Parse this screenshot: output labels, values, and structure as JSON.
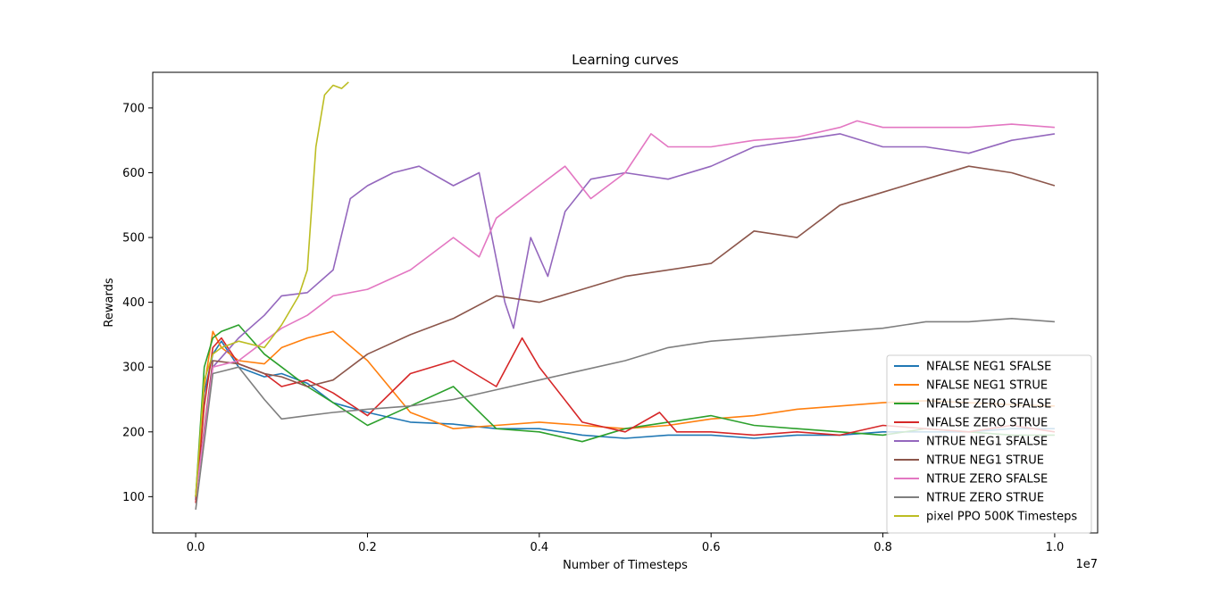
{
  "chart_data": {
    "type": "line",
    "title": "Learning curves",
    "xlabel": "Number of Timesteps",
    "ylabel": "Rewards",
    "x_scale_label": "1e7",
    "xlim": [
      -500000,
      10500000
    ],
    "ylim": [
      44,
      755
    ],
    "xticks": [
      0,
      2000000,
      4000000,
      6000000,
      8000000,
      10000000
    ],
    "xtick_labels": [
      "0.0",
      "0.2",
      "0.4",
      "0.6",
      "0.8",
      "1.0"
    ],
    "yticks": [
      100,
      200,
      300,
      400,
      500,
      600,
      700
    ],
    "ytick_labels": [
      "100",
      "200",
      "300",
      "400",
      "500",
      "600",
      "700"
    ],
    "grid": false,
    "legend_position": "lower-right",
    "series": [
      {
        "name": "NFALSE NEG1 SFALSE",
        "color": "#1f77b4",
        "x": [
          0,
          100000,
          200000,
          300000,
          500000,
          800000,
          1000000,
          1300000,
          1600000,
          2000000,
          2500000,
          3000000,
          3500000,
          4000000,
          4500000,
          5000000,
          5500000,
          6000000,
          6500000,
          7000000,
          7500000,
          8000000,
          8500000,
          9000000,
          9500000,
          10000000
        ],
        "y": [
          95,
          260,
          320,
          340,
          300,
          285,
          290,
          275,
          245,
          230,
          215,
          212,
          205,
          205,
          195,
          190,
          195,
          195,
          190,
          195,
          195,
          200,
          200,
          200,
          205,
          205
        ]
      },
      {
        "name": "NFALSE NEG1 STRUE",
        "color": "#ff7f0e",
        "x": [
          0,
          100000,
          200000,
          300000,
          500000,
          800000,
          1000000,
          1300000,
          1600000,
          2000000,
          2500000,
          3000000,
          3500000,
          4000000,
          4500000,
          5000000,
          5500000,
          6000000,
          6500000,
          7000000,
          7500000,
          8000000,
          8500000,
          9000000,
          9500000,
          10000000
        ],
        "y": [
          100,
          270,
          355,
          330,
          310,
          305,
          330,
          345,
          355,
          310,
          230,
          205,
          210,
          215,
          210,
          205,
          210,
          220,
          225,
          235,
          240,
          245,
          248,
          245,
          242,
          240
        ]
      },
      {
        "name": "NFALSE ZERO SFALSE",
        "color": "#2ca02c",
        "x": [
          0,
          100000,
          200000,
          300000,
          500000,
          800000,
          1000000,
          1300000,
          1600000,
          2000000,
          2500000,
          3000000,
          3500000,
          4000000,
          4500000,
          5000000,
          5500000,
          6000000,
          6500000,
          7000000,
          7500000,
          8000000,
          8500000,
          9000000,
          9500000,
          10000000
        ],
        "y": [
          100,
          300,
          345,
          355,
          365,
          320,
          300,
          270,
          245,
          210,
          240,
          270,
          205,
          200,
          185,
          205,
          215,
          225,
          210,
          205,
          200,
          195,
          205,
          200,
          195,
          195
        ]
      },
      {
        "name": "NFALSE ZERO STRUE",
        "color": "#d62728",
        "x": [
          0,
          100000,
          200000,
          300000,
          500000,
          800000,
          1000000,
          1300000,
          1600000,
          2000000,
          2500000,
          3000000,
          3500000,
          3800000,
          4000000,
          4500000,
          5000000,
          5400000,
          5600000,
          6000000,
          6500000,
          7000000,
          7500000,
          8000000,
          8500000,
          9000000,
          9500000,
          10000000
        ],
        "y": [
          90,
          240,
          330,
          345,
          305,
          290,
          270,
          280,
          260,
          225,
          290,
          310,
          270,
          345,
          300,
          215,
          200,
          230,
          200,
          200,
          195,
          200,
          195,
          210,
          205,
          200,
          210,
          200
        ]
      },
      {
        "name": "NTRUE NEG1 SFALSE",
        "color": "#9467bd",
        "x": [
          0,
          200000,
          500000,
          800000,
          1000000,
          1300000,
          1600000,
          1800000,
          2000000,
          2300000,
          2600000,
          3000000,
          3300000,
          3600000,
          3700000,
          3900000,
          4100000,
          4300000,
          4600000,
          5000000,
          5500000,
          6000000,
          6500000,
          7000000,
          7500000,
          8000000,
          8500000,
          9000000,
          9500000,
          10000000
        ],
        "y": [
          100,
          300,
          345,
          380,
          410,
          415,
          450,
          560,
          580,
          600,
          610,
          580,
          600,
          400,
          360,
          500,
          440,
          540,
          590,
          600,
          590,
          610,
          640,
          650,
          660,
          640,
          640,
          630,
          650,
          660
        ]
      },
      {
        "name": "NTRUE NEG1 STRUE",
        "color": "#8c564b",
        "x": [
          0,
          200000,
          500000,
          800000,
          1000000,
          1300000,
          1600000,
          2000000,
          2500000,
          3000000,
          3500000,
          4000000,
          4500000,
          5000000,
          5500000,
          6000000,
          6500000,
          7000000,
          7500000,
          8000000,
          8500000,
          9000000,
          9500000,
          10000000
        ],
        "y": [
          100,
          310,
          305,
          290,
          285,
          270,
          280,
          320,
          350,
          375,
          410,
          400,
          420,
          440,
          450,
          460,
          510,
          500,
          550,
          570,
          590,
          610,
          600,
          580
        ]
      },
      {
        "name": "NTRUE ZERO SFALSE",
        "color": "#e377c2",
        "x": [
          0,
          200000,
          500000,
          800000,
          1000000,
          1300000,
          1600000,
          2000000,
          2500000,
          3000000,
          3300000,
          3500000,
          4000000,
          4300000,
          4600000,
          5000000,
          5300000,
          5500000,
          6000000,
          6500000,
          7000000,
          7500000,
          7700000,
          8000000,
          8500000,
          9000000,
          9500000,
          10000000
        ],
        "y": [
          100,
          300,
          310,
          340,
          360,
          380,
          410,
          420,
          450,
          500,
          470,
          530,
          580,
          610,
          560,
          600,
          660,
          640,
          640,
          650,
          655,
          670,
          680,
          670,
          670,
          670,
          675,
          670
        ]
      },
      {
        "name": "NTRUE ZERO STRUE",
        "color": "#7f7f7f",
        "x": [
          0,
          200000,
          500000,
          800000,
          1000000,
          1300000,
          1600000,
          2000000,
          2500000,
          3000000,
          3500000,
          4000000,
          4500000,
          5000000,
          5500000,
          6000000,
          6500000,
          7000000,
          7500000,
          8000000,
          8500000,
          9000000,
          9500000,
          10000000
        ],
        "y": [
          80,
          290,
          300,
          250,
          220,
          225,
          230,
          235,
          240,
          250,
          265,
          280,
          295,
          310,
          330,
          340,
          345,
          350,
          355,
          360,
          370,
          370,
          375,
          370
        ]
      },
      {
        "name": "pixel PPO 500K Timesteps",
        "color": "#bcbd22",
        "x": [
          0,
          100000,
          200000,
          300000,
          500000,
          800000,
          1000000,
          1200000,
          1300000,
          1400000,
          1500000,
          1600000,
          1700000,
          1780000
        ],
        "y": [
          100,
          280,
          320,
          330,
          340,
          330,
          365,
          410,
          450,
          640,
          720,
          735,
          730,
          740
        ]
      }
    ]
  }
}
